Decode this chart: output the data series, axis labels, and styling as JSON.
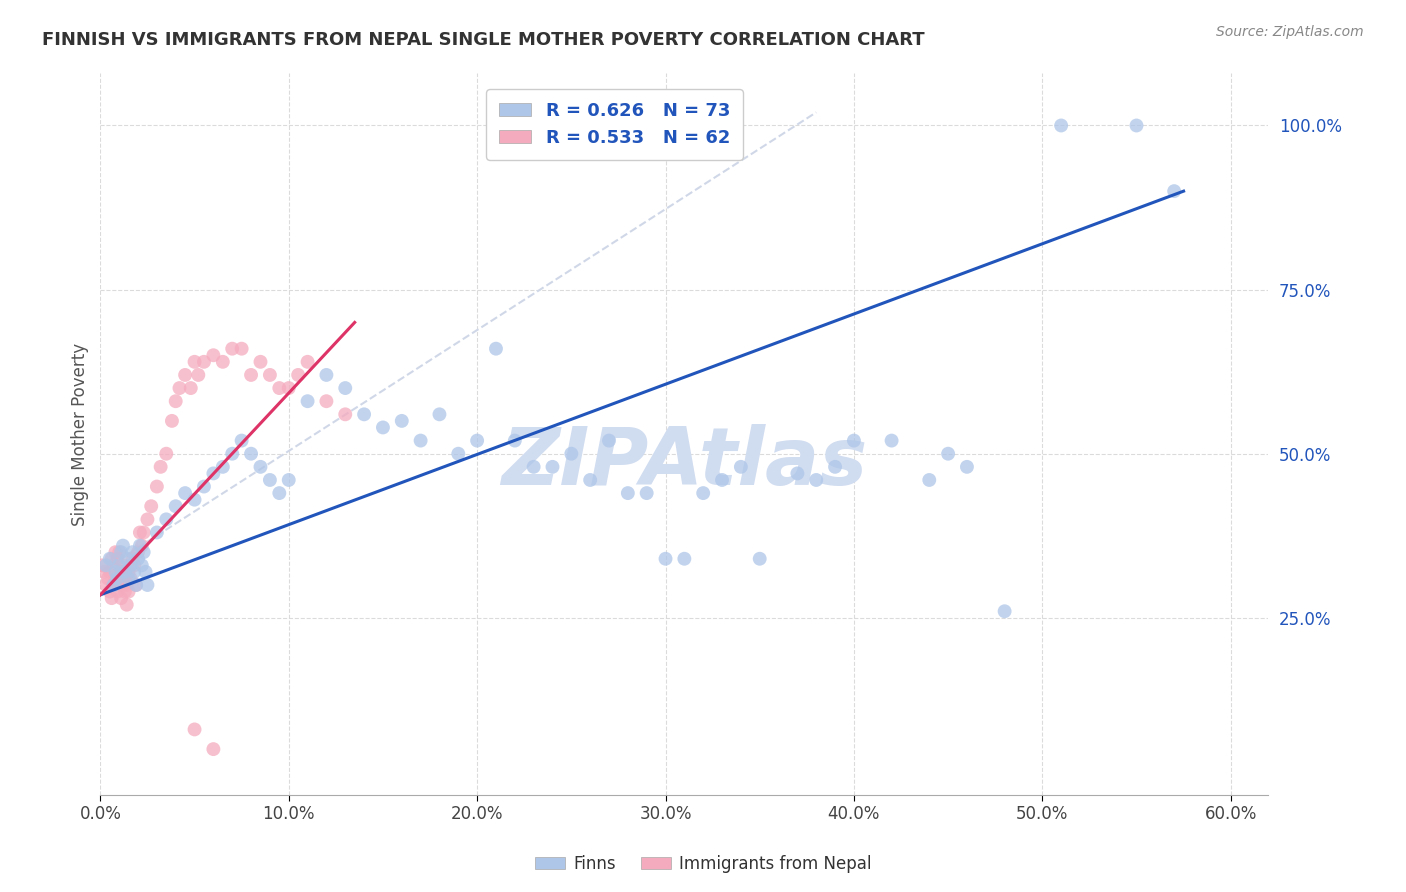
{
  "title": "FINNISH VS IMMIGRANTS FROM NEPAL SINGLE MOTHER POVERTY CORRELATION CHART",
  "source": "Source: ZipAtlas.com",
  "ylabel": "Single Mother Poverty",
  "xlim": [
    0.0,
    0.62
  ],
  "ylim": [
    -0.02,
    1.08
  ],
  "xtick_values": [
    0.0,
    0.1,
    0.2,
    0.3,
    0.4,
    0.5,
    0.6
  ],
  "ytick_values": [
    0.25,
    0.5,
    0.75,
    1.0
  ],
  "legend_entry1": "R = 0.626   N = 73",
  "legend_entry2": "R = 0.533   N = 62",
  "legend_label1": "Finns",
  "legend_label2": "Immigrants from Nepal",
  "blue_color": "#aec6e8",
  "pink_color": "#f5abbe",
  "blue_line_color": "#2255bb",
  "pink_line_color": "#dd3366",
  "dash_line_color": "#d0d8e8",
  "watermark": "ZIPAtlas",
  "watermark_color": "#d0dcf0",
  "finns_x": [
    0.003,
    0.005,
    0.007,
    0.008,
    0.009,
    0.01,
    0.011,
    0.012,
    0.013,
    0.014,
    0.015,
    0.016,
    0.017,
    0.018,
    0.019,
    0.02,
    0.021,
    0.022,
    0.023,
    0.024,
    0.025,
    0.03,
    0.035,
    0.04,
    0.045,
    0.05,
    0.055,
    0.06,
    0.065,
    0.07,
    0.075,
    0.08,
    0.085,
    0.09,
    0.095,
    0.1,
    0.11,
    0.12,
    0.13,
    0.14,
    0.15,
    0.16,
    0.17,
    0.18,
    0.19,
    0.2,
    0.21,
    0.22,
    0.23,
    0.24,
    0.25,
    0.26,
    0.27,
    0.28,
    0.29,
    0.3,
    0.31,
    0.32,
    0.33,
    0.34,
    0.35,
    0.37,
    0.38,
    0.39,
    0.4,
    0.42,
    0.44,
    0.45,
    0.46,
    0.48,
    0.51,
    0.55,
    0.57
  ],
  "finns_y": [
    0.33,
    0.34,
    0.3,
    0.32,
    0.31,
    0.33,
    0.35,
    0.36,
    0.32,
    0.34,
    0.31,
    0.33,
    0.35,
    0.32,
    0.3,
    0.34,
    0.36,
    0.33,
    0.35,
    0.32,
    0.3,
    0.38,
    0.4,
    0.42,
    0.44,
    0.43,
    0.45,
    0.47,
    0.48,
    0.5,
    0.52,
    0.5,
    0.48,
    0.46,
    0.44,
    0.46,
    0.58,
    0.62,
    0.6,
    0.56,
    0.54,
    0.55,
    0.52,
    0.56,
    0.5,
    0.52,
    0.66,
    0.52,
    0.48,
    0.48,
    0.5,
    0.46,
    0.52,
    0.44,
    0.44,
    0.34,
    0.34,
    0.44,
    0.46,
    0.48,
    0.34,
    0.47,
    0.46,
    0.48,
    0.52,
    0.52,
    0.46,
    0.5,
    0.48,
    0.26,
    1.0,
    1.0,
    0.9
  ],
  "nepal_x": [
    0.001,
    0.002,
    0.003,
    0.004,
    0.005,
    0.005,
    0.006,
    0.006,
    0.007,
    0.007,
    0.008,
    0.008,
    0.009,
    0.009,
    0.01,
    0.01,
    0.011,
    0.011,
    0.012,
    0.012,
    0.013,
    0.013,
    0.014,
    0.014,
    0.015,
    0.015,
    0.016,
    0.017,
    0.018,
    0.019,
    0.02,
    0.021,
    0.022,
    0.023,
    0.025,
    0.027,
    0.03,
    0.032,
    0.035,
    0.038,
    0.04,
    0.042,
    0.045,
    0.048,
    0.05,
    0.052,
    0.055,
    0.06,
    0.065,
    0.07,
    0.075,
    0.08,
    0.085,
    0.09,
    0.095,
    0.1,
    0.105,
    0.11,
    0.12,
    0.13,
    0.05,
    0.06
  ],
  "nepal_y": [
    0.33,
    0.32,
    0.3,
    0.31,
    0.29,
    0.32,
    0.28,
    0.34,
    0.3,
    0.33,
    0.31,
    0.35,
    0.29,
    0.34,
    0.3,
    0.35,
    0.28,
    0.32,
    0.3,
    0.33,
    0.29,
    0.31,
    0.27,
    0.3,
    0.29,
    0.32,
    0.31,
    0.34,
    0.33,
    0.3,
    0.35,
    0.38,
    0.36,
    0.38,
    0.4,
    0.42,
    0.45,
    0.48,
    0.5,
    0.55,
    0.58,
    0.6,
    0.62,
    0.6,
    0.64,
    0.62,
    0.64,
    0.65,
    0.64,
    0.66,
    0.66,
    0.62,
    0.64,
    0.62,
    0.6,
    0.6,
    0.62,
    0.64,
    0.58,
    0.56,
    0.08,
    0.05
  ],
  "blue_trendline": [
    [
      0.0,
      0.595
    ],
    [
      0.57,
      0.595
    ]
  ],
  "pink_trendline_x": [
    0.0,
    0.135
  ],
  "dash_line": [
    [
      0.0,
      0.32
    ],
    [
      0.4,
      1.02
    ]
  ]
}
